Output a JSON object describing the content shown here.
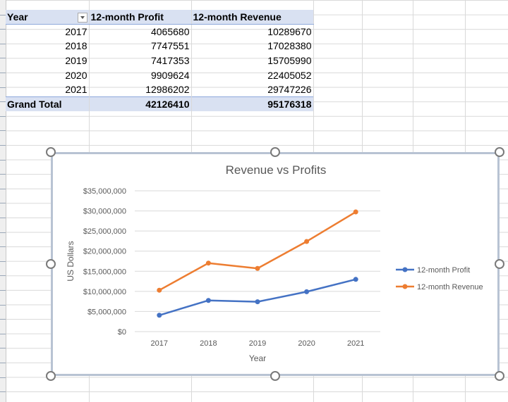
{
  "pivot": {
    "headers": [
      "Year",
      "12-month Profit",
      "12-month Revenue"
    ],
    "rows": [
      {
        "year": "2017",
        "profit": "4065680",
        "revenue": "10289670"
      },
      {
        "year": "2018",
        "profit": "7747551",
        "revenue": "17028380"
      },
      {
        "year": "2019",
        "profit": "7417353",
        "revenue": "15705990"
      },
      {
        "year": "2020",
        "profit": "9909624",
        "revenue": "22405052"
      },
      {
        "year": "2021",
        "profit": "12986202",
        "revenue": "29747226"
      }
    ],
    "total": {
      "label": "Grand Total",
      "profit": "42126410",
      "revenue": "95176318"
    }
  },
  "chart_data": {
    "type": "line",
    "title": "Revenue  vs Profits",
    "xlabel": "Year",
    "ylabel": "US Dollars",
    "categories": [
      "2017",
      "2018",
      "2019",
      "2020",
      "2021"
    ],
    "ylim": [
      0,
      35000000
    ],
    "yticks": [
      "$0",
      "$5,000,000",
      "$10,000,000",
      "$15,000,000",
      "$20,000,000",
      "$25,000,000",
      "$30,000,000",
      "$35,000,000"
    ],
    "series": [
      {
        "name": "12-month Profit",
        "color": "#4472c4",
        "values": [
          4065680,
          7747551,
          7417353,
          9909624,
          12986202
        ]
      },
      {
        "name": "12-month Revenue",
        "color": "#ed7d31",
        "values": [
          10289670,
          17028380,
          15705990,
          22405052,
          29747226
        ]
      }
    ],
    "legend": "right",
    "grid": true
  }
}
